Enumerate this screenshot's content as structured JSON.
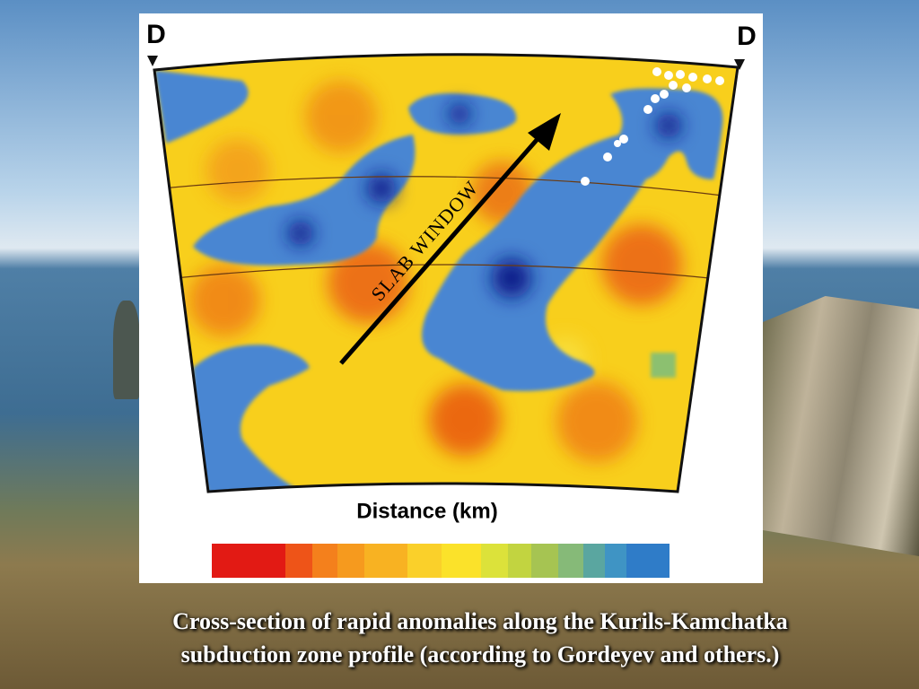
{
  "figure": {
    "left_label": "D",
    "right_label": "D",
    "annotation": "SLAB WINDOW",
    "axis_label": "Distance (km)"
  },
  "caption": {
    "lines": [
      "Cross-section of rapid anomalies along the Kurils-Kamchatka",
      "subduction zone profile (according to Gordeyev and others.)"
    ]
  }
}
